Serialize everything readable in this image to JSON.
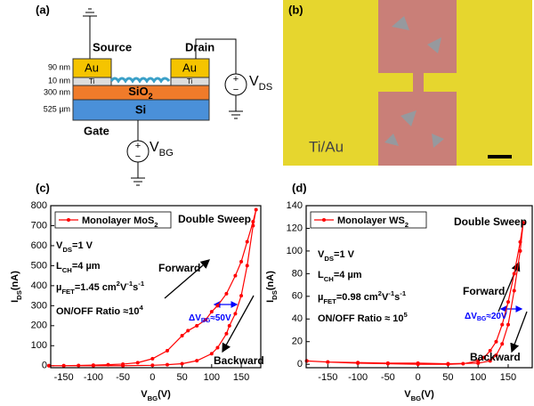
{
  "panels": {
    "a": {
      "label": "(a)",
      "source": "Source",
      "drain": "Drain",
      "au_left": "Au",
      "au_right": "Au",
      "ti_left": "Ti",
      "ti_right": "Ti",
      "sio2": [
        {
          "t": "SiO"
        },
        {
          "t": "2",
          "sub": true
        }
      ],
      "si": "Si",
      "gate": "Gate",
      "vbg": [
        {
          "t": "V"
        },
        {
          "t": "BG",
          "sub": true
        }
      ],
      "vds": [
        {
          "t": "V"
        },
        {
          "t": "DS",
          "sub": true
        }
      ],
      "thickness": [
        "90 nm",
        "10 nm",
        "300 nm",
        "525 µm"
      ]
    },
    "b": {
      "label": "(b)",
      "material": "Ti/Au"
    }
  },
  "chart_data": [
    {
      "type": "line",
      "label": "(c)",
      "xlabel": [
        {
          "t": "V"
        },
        {
          "t": "BG",
          "sub": true
        },
        {
          "t": "(V)"
        }
      ],
      "ylabel": [
        {
          "t": "I"
        },
        {
          "t": "DS",
          "sub": true
        },
        {
          "t": "(nA)"
        }
      ],
      "xlim": [
        -172,
        183
      ],
      "ylim": [
        -10,
        800
      ],
      "xticks": [
        -150,
        -100,
        -50,
        0,
        50,
        100,
        150
      ],
      "yticks": [
        0,
        100,
        200,
        300,
        400,
        500,
        600,
        700,
        800
      ],
      "series": [
        {
          "name": [
            {
              "t": "Monolayer MoS"
            },
            {
              "t": "2",
              "sub": true
            }
          ],
          "color": "#ff0000",
          "x": [
            -175,
            -150,
            -125,
            -100,
            -75,
            -50,
            -25,
            0,
            25,
            50,
            60,
            75,
            90,
            100,
            110,
            125,
            140,
            150,
            160,
            170,
            175,
            170,
            160,
            150,
            140,
            130,
            125,
            110,
            100,
            75,
            50,
            25,
            0,
            -50,
            -100,
            -150,
            -175
          ],
          "values": [
            0,
            0,
            1,
            3,
            5,
            8,
            15,
            35,
            75,
            150,
            175,
            200,
            230,
            270,
            300,
            360,
            450,
            520,
            620,
            720,
            780,
            700,
            500,
            350,
            260,
            200,
            160,
            90,
            60,
            25,
            10,
            5,
            2,
            0,
            0,
            0,
            0
          ]
        }
      ],
      "annotations": [
        [
          {
            "t": "Double Sweep"
          }
        ],
        [
          {
            "t": "V"
          },
          {
            "t": "DS",
            "sub": true
          },
          {
            "t": "=1 V"
          }
        ],
        [
          {
            "t": "L"
          },
          {
            "t": "CH",
            "sub": true
          },
          {
            "t": "=4 µm"
          }
        ],
        [
          {
            "t": "µ"
          },
          {
            "t": "FET",
            "sub": true
          },
          {
            "t": "=1.45 cm"
          },
          {
            "t": "2",
            "sup": true
          },
          {
            "t": "V"
          },
          {
            "t": "-1",
            "sup": true
          },
          {
            "t": "s"
          },
          {
            "t": "-1",
            "sup": true
          }
        ],
        [
          {
            "t": "ON/OFF Ratio ≈10"
          },
          {
            "t": "4",
            "sup": true
          }
        ],
        [
          {
            "t": "Forward"
          }
        ],
        [
          {
            "t": "Backward"
          }
        ],
        [
          {
            "t": "ΔV"
          },
          {
            "t": "BG",
            "sub": true
          },
          {
            "t": "≈50V"
          }
        ]
      ]
    },
    {
      "type": "line",
      "label": "(d)",
      "xlabel": [
        {
          "t": "V"
        },
        {
          "t": "BG",
          "sub": true
        },
        {
          "t": "(V)"
        }
      ],
      "ylabel": [
        {
          "t": "I"
        },
        {
          "t": "DS",
          "sub": true
        },
        {
          "t": "(nA)"
        }
      ],
      "xlim": [
        -186,
        190
      ],
      "ylim": [
        -3,
        140
      ],
      "xticks": [
        -150,
        -100,
        -50,
        0,
        50,
        100,
        150
      ],
      "yticks": [
        0,
        20,
        40,
        60,
        80,
        100,
        120,
        140
      ],
      "series": [
        {
          "name": [
            {
              "t": "Monolayer WS"
            },
            {
              "t": "2",
              "sub": true
            }
          ],
          "color": "#ff0000",
          "x": [
            -185,
            -150,
            -100,
            -50,
            0,
            50,
            75,
            100,
            110,
            120,
            130,
            140,
            150,
            160,
            170,
            175,
            170,
            160,
            150,
            140,
            130,
            120,
            100,
            50,
            0,
            -50,
            -100,
            -150,
            -185
          ],
          "values": [
            3,
            2,
            1,
            0.5,
            0,
            0,
            0.5,
            3,
            6,
            12,
            20,
            35,
            55,
            80,
            108,
            125,
            100,
            65,
            35,
            18,
            8,
            3,
            1,
            0.5,
            1,
            1,
            1.5,
            2,
            3
          ]
        }
      ],
      "annotations": [
        [
          {
            "t": "Double Sweep"
          }
        ],
        [
          {
            "t": "V"
          },
          {
            "t": "DS",
            "sub": true
          },
          {
            "t": "=1 V"
          }
        ],
        [
          {
            "t": "L"
          },
          {
            "t": "CH",
            "sub": true
          },
          {
            "t": "=4 µm"
          }
        ],
        [
          {
            "t": "µ"
          },
          {
            "t": "FET",
            "sub": true
          },
          {
            "t": "=0.98 cm"
          },
          {
            "t": "2",
            "sup": true
          },
          {
            "t": "V"
          },
          {
            "t": "-1",
            "sup": true
          },
          {
            "t": "s"
          },
          {
            "t": "-1",
            "sup": true
          }
        ],
        [
          {
            "t": "ON/OFF Ratio ≈ 10"
          },
          {
            "t": "5",
            "sup": true
          }
        ],
        [
          {
            "t": "Forward"
          }
        ],
        [
          {
            "t": "Backward"
          }
        ],
        [
          {
            "t": "ΔV"
          },
          {
            "t": "BG",
            "sub": true
          },
          {
            "t": "≈20V"
          }
        ]
      ]
    }
  ]
}
